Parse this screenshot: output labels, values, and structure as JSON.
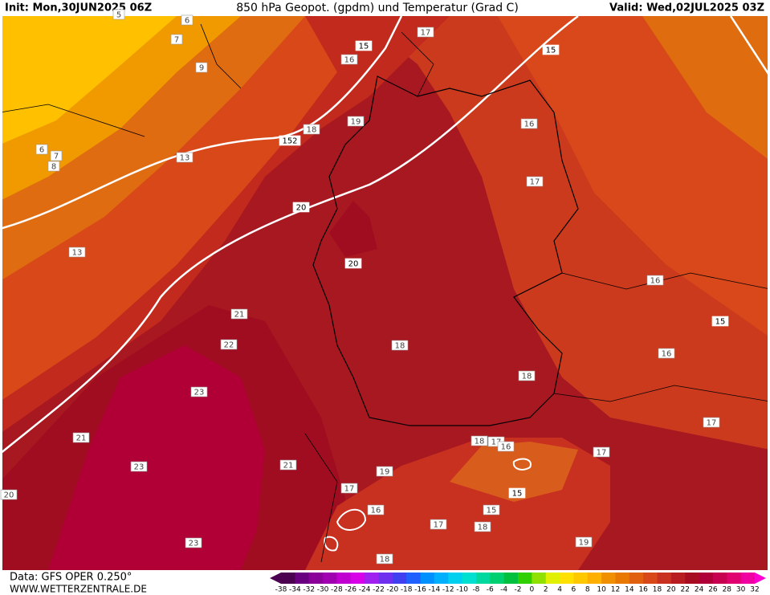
{
  "header": {
    "init": "Init: Mon,30JUN2025 06Z",
    "title": "850 hPa Geopot. (gpdm) und Temperatur (Grad C)",
    "valid": "Valid: Wed,02JUL2025 03Z"
  },
  "footer": {
    "source": "Data: GFS OPER 0.250°",
    "site": "WWW.WETTERZENTRALE.DE"
  },
  "colorbar": {
    "labels": [
      "-38",
      "-34",
      "-32",
      "-30",
      "-28",
      "-26",
      "-24",
      "-22",
      "-20",
      "-18",
      "-16",
      "-14",
      "-12",
      "-10",
      "-8",
      "-6",
      "-4",
      "-2",
      "0",
      "2",
      "4",
      "6",
      "8",
      "10",
      "12",
      "14",
      "16",
      "18",
      "20",
      "22",
      "24",
      "26",
      "28",
      "30",
      "32"
    ],
    "colors": [
      "#4b0050",
      "#6a0080",
      "#8a0099",
      "#a000b0",
      "#c000d0",
      "#d800e8",
      "#a020f0",
      "#7030f0",
      "#4040f0",
      "#2060ff",
      "#0090ff",
      "#00b0ff",
      "#00d0f0",
      "#00e0d0",
      "#00d8a0",
      "#00d070",
      "#00c040",
      "#30d000",
      "#90e000",
      "#e0f000",
      "#ffe000",
      "#ffc800",
      "#ffb000",
      "#f09000",
      "#e87800",
      "#e06010",
      "#d84818",
      "#c83020",
      "#b81c20",
      "#a80c20",
      "#b00038",
      "#c80050",
      "#e00070",
      "#f000a0",
      "#ff00d0"
    ]
  },
  "contour_labels": [
    "5",
    "6",
    "7",
    "9",
    "15",
    "17",
    "15",
    "16",
    "19",
    "18",
    "152",
    "16",
    "13",
    "6",
    "7",
    "8",
    "17",
    "20",
    "20",
    "13",
    "16",
    "15",
    "21",
    "22",
    "16",
    "18",
    "18",
    "23",
    "21",
    "17",
    "18",
    "17",
    "16",
    "17",
    "21",
    "23",
    "19",
    "17",
    "15",
    "16",
    "15",
    "20",
    "17",
    "18",
    "19",
    "23",
    "18"
  ]
}
